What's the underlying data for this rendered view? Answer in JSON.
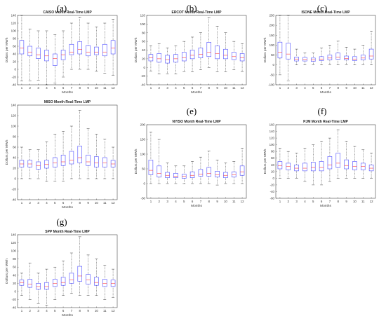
{
  "chart_data": [
    {
      "panel": "(a)",
      "type": "box",
      "title": "CAISO Month Real-Time LMP",
      "xlabel": "Months",
      "ylabel": "Dollars per MWh",
      "categories": [
        "1",
        "2",
        "3",
        "4",
        "5",
        "6",
        "7",
        "8",
        "9",
        "10",
        "11",
        "12"
      ],
      "ylim": [
        -40,
        140
      ],
      "yticks": [
        -40,
        -20,
        0,
        20,
        40,
        60,
        80,
        100,
        120,
        140
      ],
      "boxes": [
        {
          "min": -30,
          "q1": 40,
          "median": 55,
          "q3": 75,
          "max": 140
        },
        {
          "min": -30,
          "q1": 35,
          "median": 45,
          "q3": 60,
          "max": 105
        },
        {
          "min": -28,
          "q1": 28,
          "median": 38,
          "q3": 55,
          "max": 100
        },
        {
          "min": -40,
          "q1": 22,
          "median": 35,
          "q3": 50,
          "max": 100
        },
        {
          "min": -35,
          "q1": 10,
          "median": 28,
          "q3": 40,
          "max": 90
        },
        {
          "min": -20,
          "q1": 25,
          "median": 38,
          "q3": 50,
          "max": 100
        },
        {
          "min": 0,
          "q1": 38,
          "median": 45,
          "q3": 65,
          "max": 120
        },
        {
          "min": 0,
          "q1": 40,
          "median": 52,
          "q3": 72,
          "max": 135
        },
        {
          "min": 0,
          "q1": 35,
          "median": 45,
          "q3": 62,
          "max": 120
        },
        {
          "min": -5,
          "q1": 38,
          "median": 45,
          "q3": 58,
          "max": 110
        },
        {
          "min": -10,
          "q1": 35,
          "median": 45,
          "q3": 65,
          "max": 120
        },
        {
          "min": -15,
          "q1": 40,
          "median": 55,
          "q3": 75,
          "max": 130
        }
      ]
    },
    {
      "panel": "(b)",
      "type": "box",
      "title": "ERCOT Month Real-Time LMP",
      "xlabel": "Months",
      "ylabel": "Dollars per MWh",
      "categories": [
        "1",
        "2",
        "3",
        "4",
        "5",
        "6",
        "7",
        "8",
        "9",
        "10",
        "11",
        "12"
      ],
      "ylim": [
        -40,
        120
      ],
      "yticks": [
        -40,
        -20,
        0,
        20,
        40,
        60,
        80,
        100,
        120
      ],
      "boxes": [
        {
          "min": -8,
          "q1": 15,
          "median": 22,
          "q3": 30,
          "max": 50
        },
        {
          "min": -15,
          "q1": 12,
          "median": 20,
          "q3": 32,
          "max": 55
        },
        {
          "min": -15,
          "q1": 10,
          "median": 18,
          "q3": 28,
          "max": 45
        },
        {
          "min": -15,
          "q1": 12,
          "median": 20,
          "q3": 30,
          "max": 50
        },
        {
          "min": -10,
          "q1": 15,
          "median": 22,
          "q3": 35,
          "max": 60
        },
        {
          "min": -10,
          "q1": 20,
          "median": 28,
          "q3": 40,
          "max": 70
        },
        {
          "min": -5,
          "q1": 22,
          "median": 30,
          "q3": 45,
          "max": 80
        },
        {
          "min": 0,
          "q1": 25,
          "median": 35,
          "q3": 58,
          "max": 115
        },
        {
          "min": -10,
          "q1": 20,
          "median": 32,
          "q3": 50,
          "max": 95
        },
        {
          "min": -10,
          "q1": 20,
          "median": 28,
          "q3": 42,
          "max": 80
        },
        {
          "min": -5,
          "q1": 18,
          "median": 25,
          "q3": 35,
          "max": 60
        },
        {
          "min": -10,
          "q1": 15,
          "median": 22,
          "q3": 32,
          "max": 55
        }
      ]
    },
    {
      "panel": "(c)",
      "type": "box",
      "title": "ISONE Month Real-Time LMP",
      "xlabel": "Months",
      "ylabel": "Dollars per MWh",
      "categories": [
        "1",
        "2",
        "3",
        "4",
        "5",
        "6",
        "7",
        "8",
        "9",
        "10",
        "11",
        "12"
      ],
      "ylim": [
        -100,
        250
      ],
      "yticks": [
        -100,
        -50,
        0,
        50,
        100,
        150,
        200,
        250
      ],
      "boxes": [
        {
          "min": -50,
          "q1": 35,
          "median": 65,
          "q3": 115,
          "max": 250
        },
        {
          "min": -80,
          "q1": 30,
          "median": 55,
          "q3": 110,
          "max": 250
        },
        {
          "min": 0,
          "q1": 20,
          "median": 30,
          "q3": 40,
          "max": 80
        },
        {
          "min": 0,
          "q1": 20,
          "median": 28,
          "q3": 38,
          "max": 60
        },
        {
          "min": 0,
          "q1": 18,
          "median": 25,
          "q3": 35,
          "max": 60
        },
        {
          "min": 0,
          "q1": 22,
          "median": 30,
          "q3": 42,
          "max": 85
        },
        {
          "min": 0,
          "q1": 25,
          "median": 35,
          "q3": 50,
          "max": 100
        },
        {
          "min": 0,
          "q1": 28,
          "median": 40,
          "q3": 60,
          "max": 120
        },
        {
          "min": 0,
          "q1": 25,
          "median": 32,
          "q3": 45,
          "max": 90
        },
        {
          "min": 0,
          "q1": 22,
          "median": 30,
          "q3": 42,
          "max": 80
        },
        {
          "min": 0,
          "q1": 25,
          "median": 35,
          "q3": 50,
          "max": 100
        },
        {
          "min": 0,
          "q1": 30,
          "median": 45,
          "q3": 80,
          "max": 170
        }
      ]
    },
    {
      "panel": "(d)",
      "type": "box",
      "title": "MISO Month Real-Time LMP",
      "xlabel": "Months",
      "ylabel": "Dollars per MWh",
      "categories": [
        "1",
        "2",
        "3",
        "4",
        "5",
        "6",
        "7",
        "8",
        "9",
        "10",
        "11",
        "12"
      ],
      "ylim": [
        -40,
        140
      ],
      "yticks": [
        -40,
        -20,
        0,
        20,
        40,
        60,
        80,
        100,
        120,
        140
      ],
      "boxes": [
        {
          "min": 0,
          "q1": 22,
          "median": 28,
          "q3": 35,
          "max": 60
        },
        {
          "min": 0,
          "q1": 22,
          "median": 28,
          "q3": 35,
          "max": 55
        },
        {
          "min": 0,
          "q1": 18,
          "median": 25,
          "q3": 32,
          "max": 55
        },
        {
          "min": -5,
          "q1": 20,
          "median": 27,
          "q3": 35,
          "max": 70
        },
        {
          "min": -5,
          "q1": 22,
          "median": 30,
          "q3": 40,
          "max": 85
        },
        {
          "min": -5,
          "q1": 25,
          "median": 32,
          "q3": 45,
          "max": 90
        },
        {
          "min": 0,
          "q1": 28,
          "median": 35,
          "q3": 52,
          "max": 100
        },
        {
          "min": 0,
          "q1": 30,
          "median": 40,
          "q3": 62,
          "max": 130
        },
        {
          "min": 0,
          "q1": 25,
          "median": 32,
          "q3": 45,
          "max": 95
        },
        {
          "min": 0,
          "q1": 22,
          "median": 30,
          "q3": 42,
          "max": 85
        },
        {
          "min": 0,
          "q1": 22,
          "median": 30,
          "q3": 40,
          "max": 75
        },
        {
          "min": 0,
          "q1": 22,
          "median": 28,
          "q3": 35,
          "max": 60
        }
      ]
    },
    {
      "panel": "(e)",
      "type": "box",
      "title": "NYISO Month Real-Time LMP",
      "xlabel": "Months",
      "ylabel": "Dollars per MWh",
      "categories": [
        "1",
        "2",
        "3",
        "4",
        "5",
        "6",
        "7",
        "8",
        "9",
        "10",
        "11",
        "12"
      ],
      "ylim": [
        -50,
        200
      ],
      "yticks": [
        -50,
        0,
        50,
        100,
        150,
        200
      ],
      "boxes": [
        {
          "min": 0,
          "q1": 30,
          "median": 45,
          "q3": 80,
          "max": 175
        },
        {
          "min": 0,
          "q1": 22,
          "median": 35,
          "q3": 60,
          "max": 150
        },
        {
          "min": 0,
          "q1": 20,
          "median": 28,
          "q3": 38,
          "max": 70
        },
        {
          "min": 0,
          "q1": 20,
          "median": 25,
          "q3": 35,
          "max": 60
        },
        {
          "min": 0,
          "q1": 18,
          "median": 25,
          "q3": 32,
          "max": 60
        },
        {
          "min": 0,
          "q1": 20,
          "median": 28,
          "q3": 40,
          "max": 75
        },
        {
          "min": 0,
          "q1": 25,
          "median": 32,
          "q3": 48,
          "max": 90
        },
        {
          "min": 0,
          "q1": 25,
          "median": 35,
          "q3": 55,
          "max": 110
        },
        {
          "min": -5,
          "q1": 22,
          "median": 30,
          "q3": 42,
          "max": 80
        },
        {
          "min": 0,
          "q1": 20,
          "median": 28,
          "q3": 38,
          "max": 70
        },
        {
          "min": 0,
          "q1": 22,
          "median": 30,
          "q3": 40,
          "max": 75
        },
        {
          "min": 0,
          "q1": 28,
          "median": 40,
          "q3": 60,
          "max": 120
        }
      ]
    },
    {
      "panel": "(f)",
      "type": "box",
      "title": "PJM Month Real-Time LMP",
      "xlabel": "Months",
      "ylabel": "Dollars per MWh",
      "categories": [
        "1",
        "2",
        "3",
        "4",
        "5",
        "6",
        "7",
        "8",
        "9",
        "10",
        "11",
        "12"
      ],
      "ylim": [
        -60,
        160
      ],
      "yticks": [
        -60,
        -40,
        -20,
        0,
        20,
        40,
        60,
        80,
        100,
        120,
        140,
        160
      ],
      "boxes": [
        {
          "min": 0,
          "q1": 28,
          "median": 38,
          "q3": 50,
          "max": 90
        },
        {
          "min": 0,
          "q1": 25,
          "median": 35,
          "q3": 45,
          "max": 80
        },
        {
          "min": 0,
          "q1": 22,
          "median": 30,
          "q3": 40,
          "max": 75
        },
        {
          "min": -10,
          "q1": 22,
          "median": 30,
          "q3": 45,
          "max": 90
        },
        {
          "min": -20,
          "q1": 22,
          "median": 32,
          "q3": 48,
          "max": 100
        },
        {
          "min": -20,
          "q1": 22,
          "median": 32,
          "q3": 50,
          "max": 110
        },
        {
          "min": -10,
          "q1": 28,
          "median": 40,
          "q3": 65,
          "max": 120
        },
        {
          "min": 0,
          "q1": 32,
          "median": 45,
          "q3": 75,
          "max": 145
        },
        {
          "min": 0,
          "q1": 28,
          "median": 38,
          "q3": 55,
          "max": 110
        },
        {
          "min": 0,
          "q1": 25,
          "median": 35,
          "q3": 50,
          "max": 95
        },
        {
          "min": 0,
          "q1": 25,
          "median": 35,
          "q3": 45,
          "max": 85
        },
        {
          "min": 0,
          "q1": 22,
          "median": 30,
          "q3": 40,
          "max": 75
        }
      ]
    },
    {
      "panel": "(g)",
      "type": "box",
      "title": "SPP Month Real-Time LMP",
      "xlabel": "Months",
      "ylabel": "Dollars per MWh",
      "categories": [
        "1",
        "2",
        "3",
        "4",
        "5",
        "6",
        "7",
        "8",
        "9",
        "10",
        "11",
        "12"
      ],
      "ylim": [
        -40,
        140
      ],
      "yticks": [
        -40,
        -20,
        0,
        20,
        40,
        60,
        80,
        100,
        120,
        140
      ],
      "boxes": [
        {
          "min": -10,
          "q1": 15,
          "median": 22,
          "q3": 28,
          "max": 45
        },
        {
          "min": -20,
          "q1": 10,
          "median": 18,
          "q3": 30,
          "max": 70
        },
        {
          "min": -30,
          "q1": 5,
          "median": 12,
          "q3": 20,
          "max": 45
        },
        {
          "min": -35,
          "q1": 5,
          "median": 12,
          "q3": 22,
          "max": 55
        },
        {
          "min": -20,
          "q1": 12,
          "median": 20,
          "q3": 30,
          "max": 60
        },
        {
          "min": -10,
          "q1": 15,
          "median": 22,
          "q3": 35,
          "max": 75
        },
        {
          "min": -5,
          "q1": 20,
          "median": 28,
          "q3": 45,
          "max": 95
        },
        {
          "min": -10,
          "q1": 25,
          "median": 38,
          "q3": 62,
          "max": 135
        },
        {
          "min": -10,
          "q1": 18,
          "median": 28,
          "q3": 42,
          "max": 90
        },
        {
          "min": -10,
          "q1": 15,
          "median": 22,
          "q3": 35,
          "max": 80
        },
        {
          "min": -20,
          "q1": 12,
          "median": 20,
          "q3": 30,
          "max": 65
        },
        {
          "min": -15,
          "q1": 12,
          "median": 20,
          "q3": 28,
          "max": 55
        }
      ]
    }
  ]
}
